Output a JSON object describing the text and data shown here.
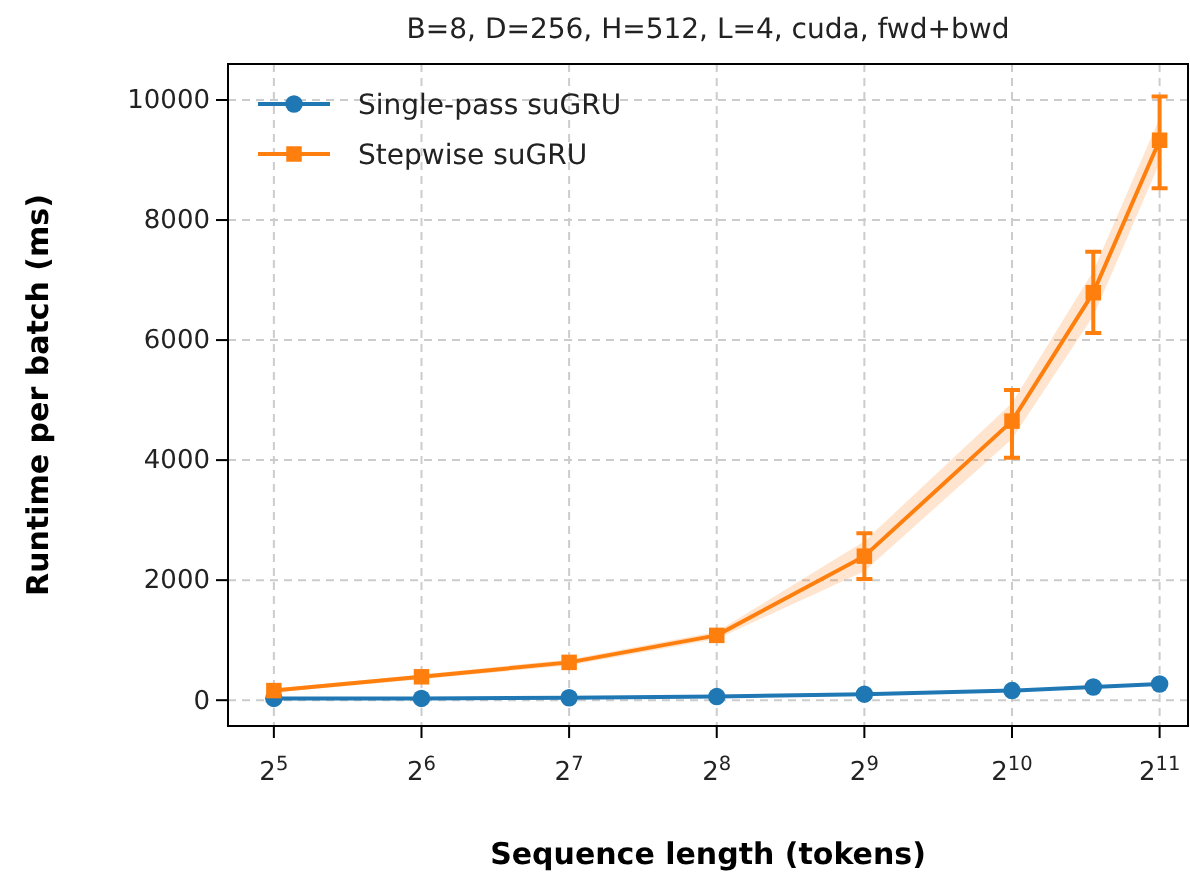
{
  "chart_data": {
    "type": "line",
    "title": "B=8, D=256, H=512, L=4, cuda, fwd+bwd",
    "xlabel": "Sequence length (tokens)",
    "ylabel": "Runtime per batch (ms)",
    "x": [
      32,
      64,
      128,
      256,
      512,
      1024,
      1500,
      2048
    ],
    "series": [
      {
        "name": "Single-pass suGRU",
        "color": "#1f77b4",
        "marker": "circle",
        "values": [
          30,
          30,
          40,
          60,
          100,
          160,
          220,
          270
        ]
      },
      {
        "name": "Stepwise suGRU",
        "color": "#ff7f0e",
        "marker": "square",
        "values": [
          160,
          390,
          630,
          1080,
          2400,
          4650,
          6790,
          9330
        ],
        "errors": [
          null,
          null,
          null,
          null,
          [
            2020,
            2780
          ],
          [
            4040,
            5170
          ],
          [
            6120,
            7470
          ],
          [
            8530,
            10060
          ]
        ],
        "lower": [
          130,
          350,
          580,
          1020,
          2150,
          4350,
          6400,
          8950
        ],
        "upper": [
          190,
          430,
          680,
          1140,
          2650,
          4950,
          7150,
          9700
        ]
      }
    ],
    "log": "x",
    "xlim": [
      25.8,
      2340
    ],
    "ylim": [
      -430,
      10600
    ],
    "xticks": [
      {
        "value": 32,
        "label": "2$^{5}$"
      },
      {
        "value": 64,
        "label": "2$^{6}$"
      },
      {
        "value": 128,
        "label": "2$^{7}$"
      },
      {
        "value": 256,
        "label": "2$^{8}$"
      },
      {
        "value": 512,
        "label": "2$^{9}$"
      },
      {
        "value": 1024,
        "label": "2$^{10}$"
      },
      {
        "value": 2048,
        "label": "2$^{11}$"
      }
    ],
    "yticks": [
      0,
      2000,
      4000,
      6000,
      8000,
      10000
    ],
    "grid": true,
    "legend": "top left",
    "line_style": "solid"
  }
}
